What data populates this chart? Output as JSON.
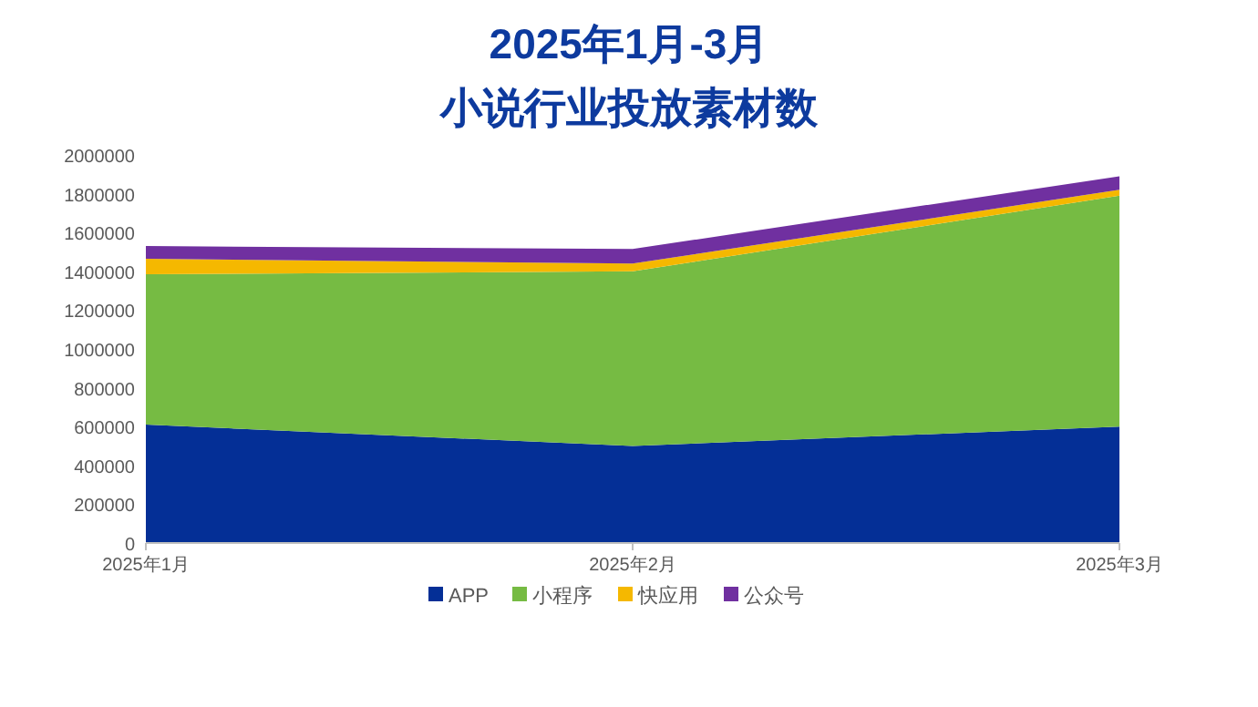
{
  "chart_data": {
    "type": "area",
    "stacked": true,
    "title": "2025年1月-3月",
    "subtitle": "小说行业投放素材数",
    "categories": [
      "2025年1月",
      "2025年2月",
      "2025年3月"
    ],
    "series": [
      {
        "name": "APP",
        "color": "#042f96",
        "values": [
          610000,
          500000,
          600000
        ]
      },
      {
        "name": "小程序",
        "color": "#76bb43",
        "values": [
          775000,
          900000,
          1190000
        ]
      },
      {
        "name": "快应用",
        "color": "#f5b800",
        "values": [
          80000,
          40000,
          30000
        ]
      },
      {
        "name": "公众号",
        "color": "#7030a0",
        "values": [
          65000,
          75000,
          70000
        ]
      }
    ],
    "ylim": [
      0,
      2000000
    ],
    "yticks": [
      0,
      200000,
      400000,
      600000,
      800000,
      1000000,
      1200000,
      1400000,
      1600000,
      1800000,
      2000000
    ],
    "legend": "bottom",
    "grid": false
  }
}
